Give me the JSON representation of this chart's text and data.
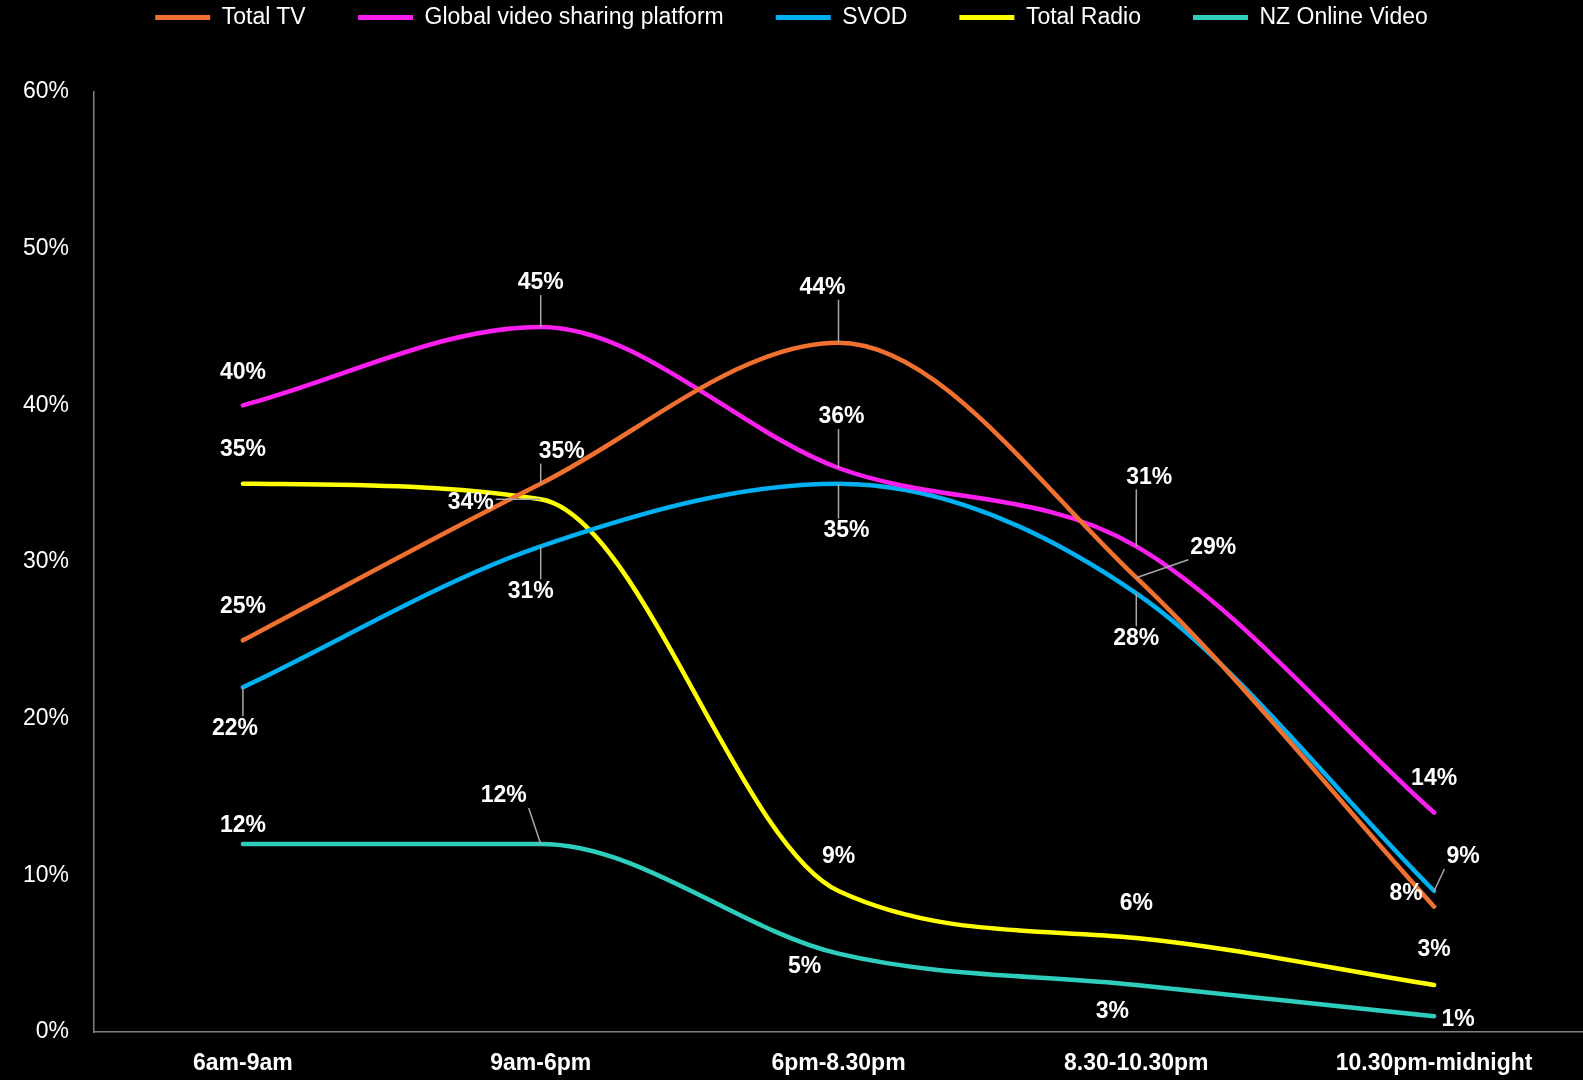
{
  "chart_data": {
    "type": "line",
    "categories": [
      "6am-9am",
      "9am-6pm",
      "6pm-8.30pm",
      "8.30-10.30pm",
      "10.30pm-midnight"
    ],
    "series": [
      {
        "name": "Total TV",
        "color": "#f07030",
        "values": [
          25,
          35,
          44,
          29,
          8
        ],
        "value_labels": [
          "25%",
          "35%",
          "44%",
          "29%",
          "8%"
        ]
      },
      {
        "name": "Global video sharing platform",
        "color": "#fb1fef",
        "values": [
          40,
          45,
          36,
          31,
          14
        ],
        "value_labels": [
          "40%",
          "45%",
          "36%",
          "31%",
          "14%"
        ]
      },
      {
        "name": "SVOD",
        "color": "#00b0f0",
        "values": [
          22,
          31,
          35,
          28,
          9
        ],
        "value_labels": [
          "22%",
          "31%",
          "35%",
          "28%",
          "9%"
        ]
      },
      {
        "name": "Total Radio",
        "color": "#ffff00",
        "values": [
          35,
          34,
          9,
          6,
          3
        ],
        "value_labels": [
          "35%",
          "34%",
          "9%",
          "6%",
          "3%"
        ]
      },
      {
        "name": "NZ Online Video",
        "color": "#2ecdbd",
        "values": [
          12,
          12,
          5,
          3,
          1
        ],
        "value_labels": [
          "12%",
          "12%",
          "5%",
          "3%",
          "1%"
        ]
      }
    ],
    "ylim": [
      0,
      60
    ],
    "yticks": [
      {
        "value": 0,
        "label": "0%"
      },
      {
        "value": 10,
        "label": "10%"
      },
      {
        "value": 20,
        "label": "20%"
      },
      {
        "value": 30,
        "label": "30%"
      },
      {
        "value": 40,
        "label": "40%"
      },
      {
        "value": 50,
        "label": "50%"
      },
      {
        "value": 60,
        "label": "60%"
      }
    ],
    "grid": false,
    "legend": "top",
    "marker": "none",
    "line_style": "solid"
  }
}
